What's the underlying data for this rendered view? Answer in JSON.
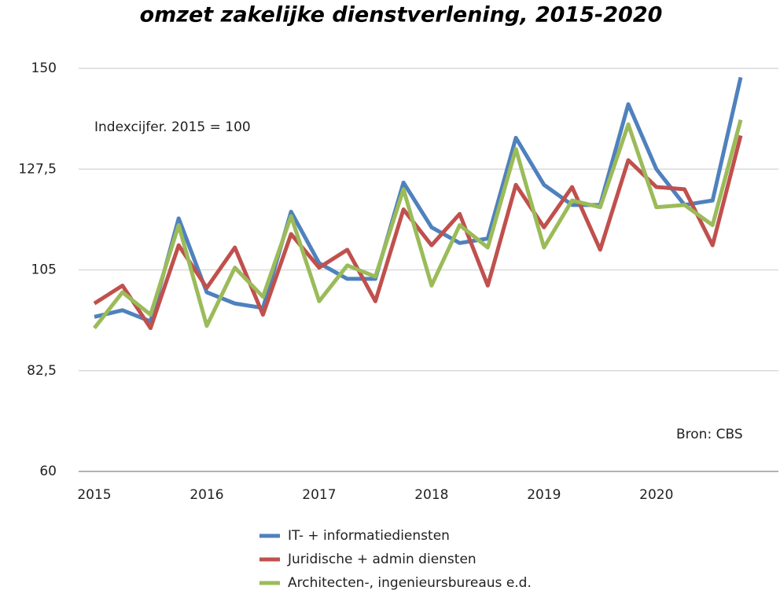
{
  "chart_data": {
    "type": "line",
    "title": "omzet zakelijke dienstverlening, 2015-2020",
    "annotations": [
      "Indexcijfer. 2015 = 100",
      "Bron: CBS"
    ],
    "categories": [
      "2015",
      null,
      null,
      null,
      "2016",
      null,
      null,
      null,
      "2017",
      null,
      null,
      null,
      "2018",
      null,
      null,
      null,
      "2019",
      null,
      null,
      null,
      "2020",
      null,
      null,
      null
    ],
    "series": [
      {
        "name": "IT- + informatiediensten",
        "color": "#4f81bd",
        "values": [
          94.5,
          96,
          93.5,
          116.5,
          100,
          97.5,
          96.5,
          118,
          106.5,
          103,
          103,
          124.5,
          114.5,
          111,
          112,
          134.5,
          124,
          119.5,
          119.5,
          142,
          127.5,
          119.5,
          120.5,
          148
        ]
      },
      {
        "name": "Juridische + admin diensten",
        "color": "#c0504d",
        "values": [
          97.5,
          101.5,
          92,
          110.5,
          101,
          110,
          95,
          113,
          105.5,
          109.5,
          98,
          118.5,
          110.5,
          117.5,
          101.5,
          124,
          114.5,
          123.5,
          109.5,
          129.5,
          123.5,
          123,
          110.5,
          135
        ]
      },
      {
        "name": "Architecten-, ingenieursbureaus e.d.",
        "color": "#9bbb59",
        "values": [
          92,
          100,
          95,
          115,
          92.5,
          105.5,
          99,
          117,
          98,
          106,
          103.5,
          123,
          101.5,
          115,
          110,
          132,
          110,
          120.5,
          119,
          137.5,
          119,
          119.5,
          115,
          138.5
        ]
      }
    ],
    "ylim": [
      60,
      150
    ],
    "yticks": [
      60,
      {
        "value": 82.5,
        "label": "82,5"
      },
      105,
      {
        "value": 127.5,
        "label": "127,5"
      },
      150
    ],
    "grid": true
  }
}
